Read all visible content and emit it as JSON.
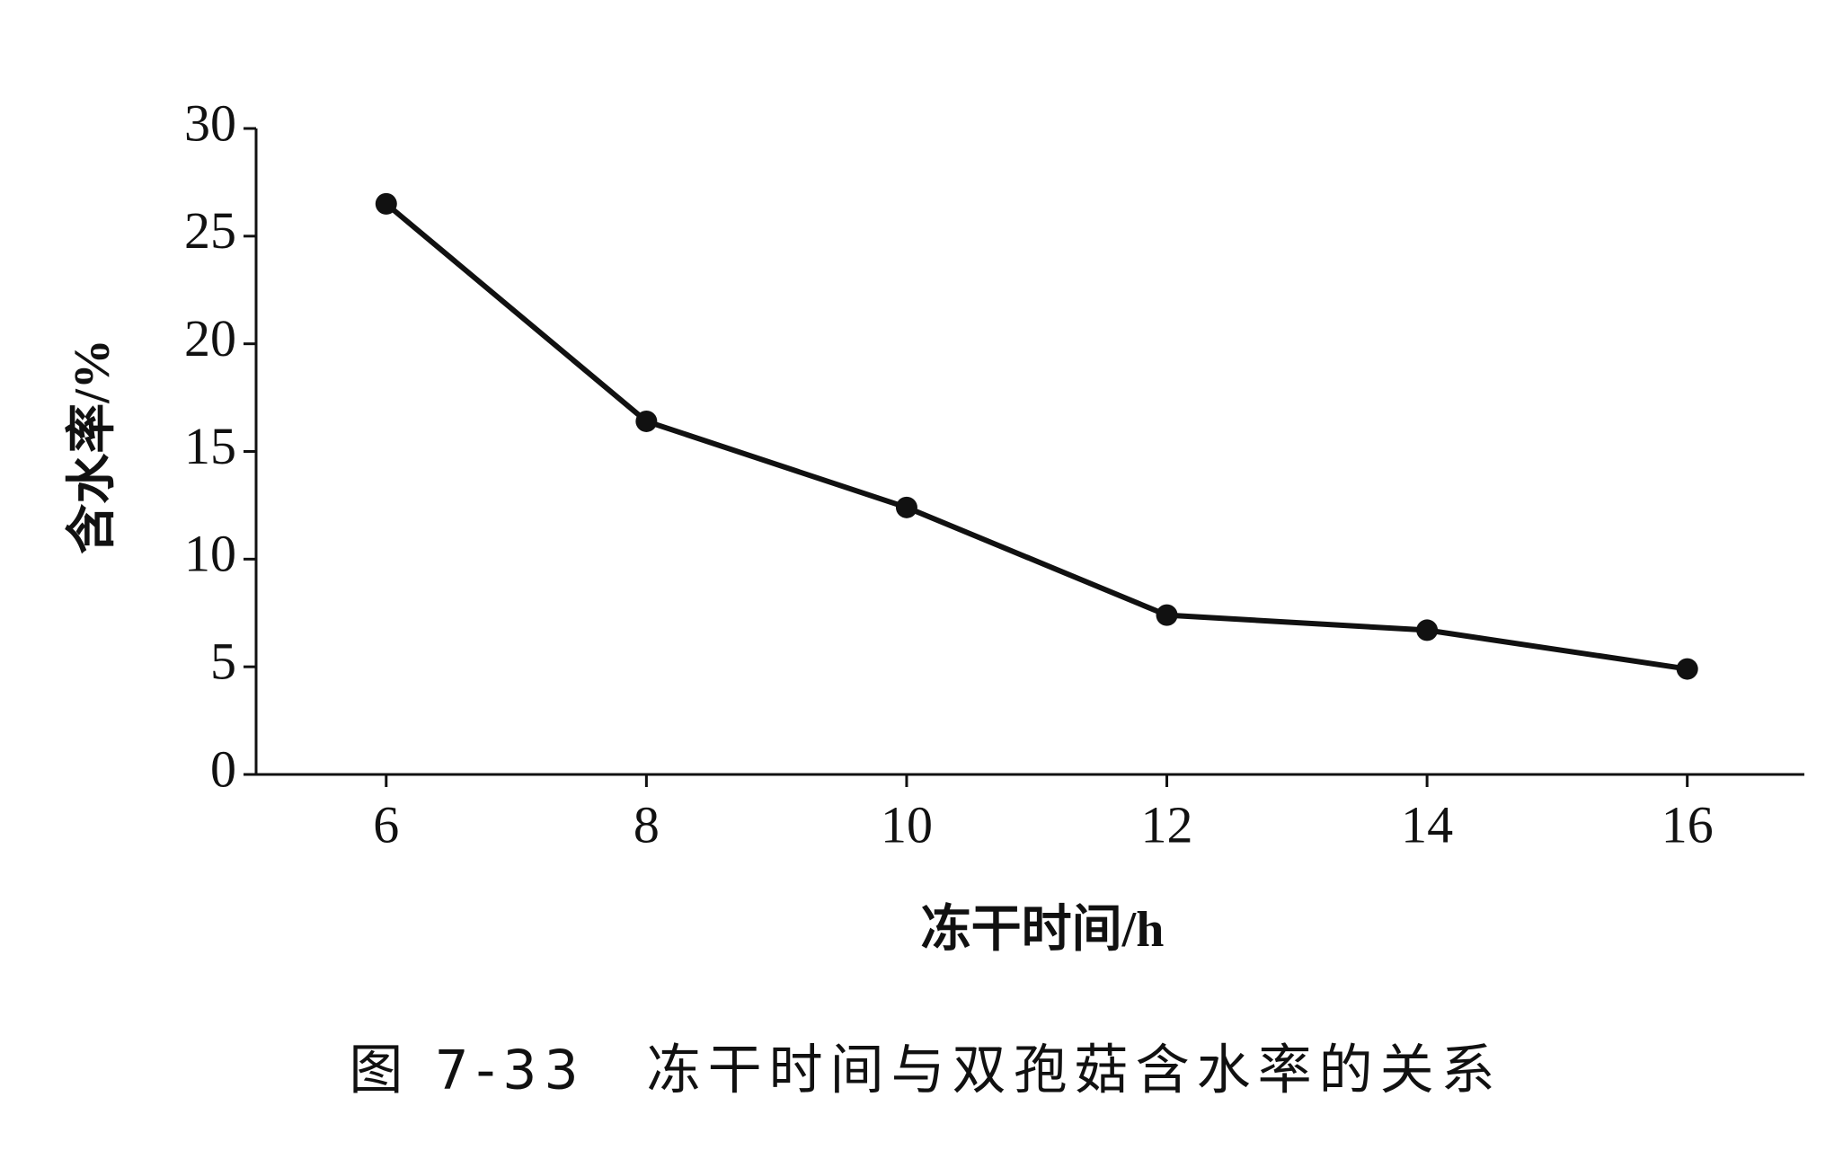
{
  "chart_data": {
    "type": "line",
    "caption": "图 7-33　冻干时间与双孢菇含水率的关系",
    "xlabel": "冻干时间/h",
    "ylabel": "含水率/%",
    "x": [
      6,
      8,
      10,
      12,
      14,
      16
    ],
    "series": [
      {
        "color": "#111111",
        "values": [
          26.5,
          16.4,
          12.4,
          7.4,
          6.7,
          4.9
        ]
      }
    ],
    "xlim": [
      5,
      16.9
    ],
    "xticks": [
      6,
      8,
      10,
      12,
      14,
      16
    ],
    "ylim": [
      0,
      30
    ],
    "yticks": [
      0,
      5,
      10,
      15,
      20,
      25,
      30
    ],
    "grid": false
  }
}
